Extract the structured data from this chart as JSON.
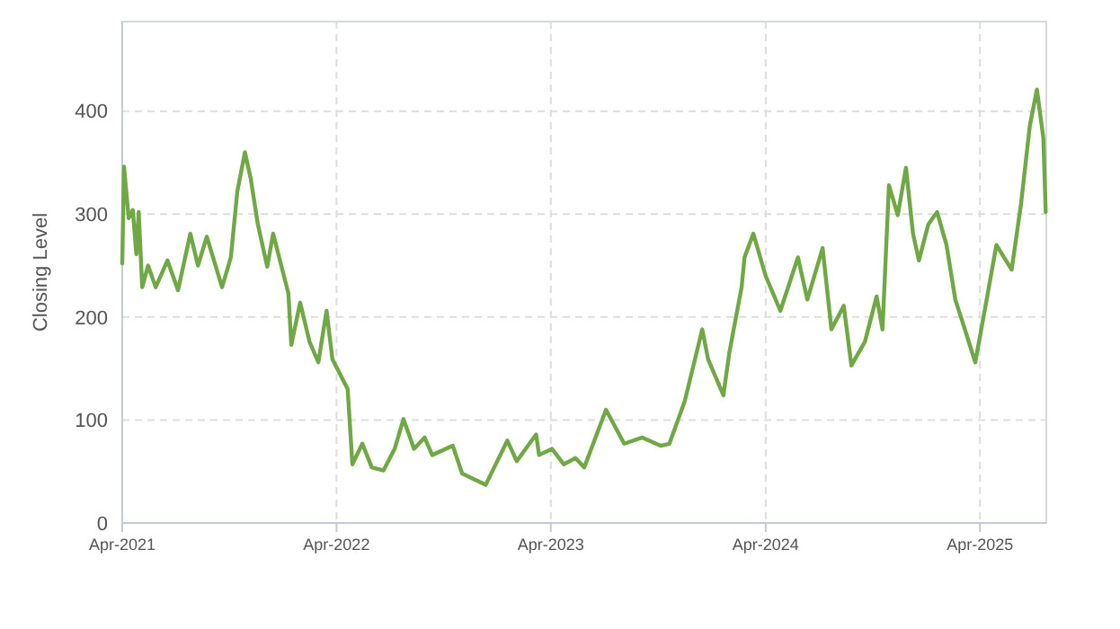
{
  "chart_data": {
    "type": "line",
    "ylabel": "Closing Level",
    "x": [
      "2021-04-01",
      "2021-04-04",
      "2021-04-12",
      "2021-04-19",
      "2021-04-25",
      "2021-04-29",
      "2021-05-05",
      "2021-05-15",
      "2021-05-28",
      "2021-06-17",
      "2021-07-05",
      "2021-07-26",
      "2021-08-08",
      "2021-08-23",
      "2021-09-18",
      "2021-10-03",
      "2021-10-14",
      "2021-10-27",
      "2021-11-06",
      "2021-11-18",
      "2021-12-04",
      "2021-12-14",
      "2022-01-09",
      "2022-01-14",
      "2022-01-29",
      "2022-02-14",
      "2022-03-01",
      "2022-03-15",
      "2022-03-25",
      "2022-04-20",
      "2022-04-28",
      "2022-05-15",
      "2022-05-31",
      "2022-06-20",
      "2022-07-09",
      "2022-07-24",
      "2022-08-11",
      "2022-08-29",
      "2022-09-11",
      "2022-10-16",
      "2022-11-01",
      "2022-12-11",
      "2023-01-17",
      "2023-02-02",
      "2023-03-07",
      "2023-03-12",
      "2023-04-03",
      "2023-04-23",
      "2023-05-13",
      "2023-05-28",
      "2023-07-04",
      "2023-08-04",
      "2023-09-04",
      "2023-10-05",
      "2023-10-20",
      "2023-11-15",
      "2023-12-15",
      "2023-12-25",
      "2024-01-20",
      "2024-01-30",
      "2024-02-20",
      "2024-02-25",
      "2024-03-11",
      "2024-04-01",
      "2024-04-26",
      "2024-05-26",
      "2024-06-11",
      "2024-07-07",
      "2024-07-22",
      "2024-08-12",
      "2024-08-25",
      "2024-09-17",
      "2024-10-07",
      "2024-10-17",
      "2024-10-28",
      "2024-11-12",
      "2024-11-26",
      "2024-12-08",
      "2024-12-18",
      "2025-01-03",
      "2025-01-18",
      "2025-02-03",
      "2025-02-18",
      "2025-03-03",
      "2025-03-24",
      "2025-04-09",
      "2025-04-29",
      "2025-05-25",
      "2025-06-10",
      "2025-06-25",
      "2025-07-07",
      "2025-07-18",
      "2025-07-22"
    ],
    "series": [
      {
        "color": "#70a845",
        "values": [
          252,
          346,
          296,
          304,
          261,
          302,
          229,
          250,
          229,
          255,
          226,
          281,
          250,
          278,
          229,
          258,
          322,
          360,
          334,
          290,
          249,
          281,
          223,
          173,
          214,
          176,
          156,
          206,
          159,
          130,
          57,
          77,
          54,
          51,
          72,
          101,
          72,
          83,
          66,
          75,
          48,
          37,
          80,
          60,
          86,
          66,
          72,
          57,
          63,
          54,
          110,
          77,
          83,
          75,
          77,
          118,
          188,
          159,
          124,
          165,
          229,
          258,
          281,
          240,
          206,
          258,
          217,
          267,
          188,
          211,
          153,
          176,
          220,
          188,
          328,
          299,
          345,
          281,
          255,
          290,
          302,
          270,
          217,
          194,
          156,
          206,
          270,
          246,
          310,
          386,
          421,
          374,
          302
        ]
      }
    ],
    "xlim": [
      "2021-04-01",
      "2025-07-23"
    ],
    "xticks": [
      {
        "value": "2021-04-01",
        "label": "Apr-2021"
      },
      {
        "value": "2022-04-01",
        "label": "Apr-2022"
      },
      {
        "value": "2023-04-01",
        "label": "Apr-2023"
      },
      {
        "value": "2024-04-01",
        "label": "Apr-2024"
      },
      {
        "value": "2025-04-01",
        "label": "Apr-2025"
      }
    ],
    "ylim": [
      0,
      487
    ],
    "yticks": [
      0,
      100,
      200,
      300,
      400
    ],
    "grid": true,
    "line_style": "solid",
    "marker": "none"
  }
}
